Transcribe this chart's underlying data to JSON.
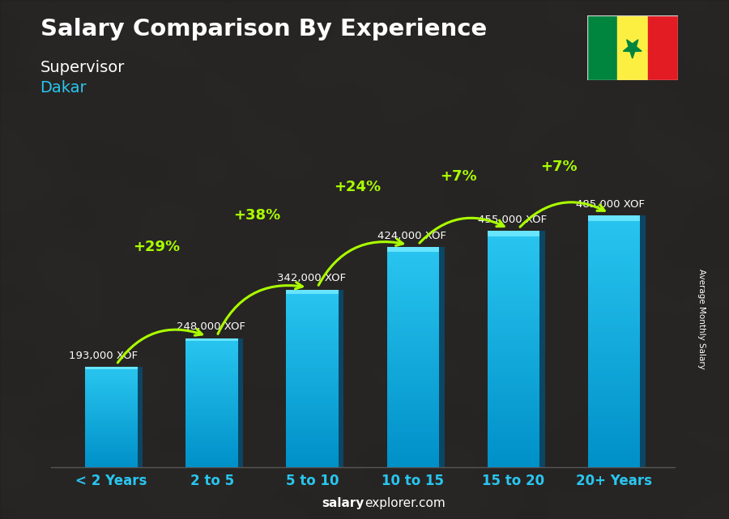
{
  "title": "Salary Comparison By Experience",
  "subtitle": "Supervisor",
  "city": "Dakar",
  "categories": [
    "< 2 Years",
    "2 to 5",
    "5 to 10",
    "10 to 15",
    "15 to 20",
    "20+ Years"
  ],
  "values": [
    193000,
    248000,
    342000,
    424000,
    455000,
    485000
  ],
  "labels": [
    "193,000 XOF",
    "248,000 XOF",
    "342,000 XOF",
    "424,000 XOF",
    "455,000 XOF",
    "485,000 XOF"
  ],
  "pct_changes": [
    null,
    "+29%",
    "+38%",
    "+24%",
    "+7%",
    "+7%"
  ],
  "bar_color_face": "#29c6f0",
  "bar_color_side": "#0090c0",
  "bar_color_top": "#55ddff",
  "background_dark": "#2a2a2a",
  "title_color": "#ffffff",
  "subtitle_color": "#ffffff",
  "city_color": "#29c6f0",
  "label_color": "#ffffff",
  "pct_color": "#aaff00",
  "arrow_color": "#aaff00",
  "xlabel_color": "#29c6f0",
  "footer_salary_color": "#ffffff",
  "footer_explorer_color": "#aaaaaa",
  "ylabel_text": "Average Monthly Salary",
  "footer_text": "salaryexplorer.com",
  "ylim": [
    0,
    580000
  ],
  "bar_width": 0.52,
  "flag_colors": [
    "#00853F",
    "#FDEF42",
    "#E31B23"
  ],
  "flag_star_color": "#00853F"
}
